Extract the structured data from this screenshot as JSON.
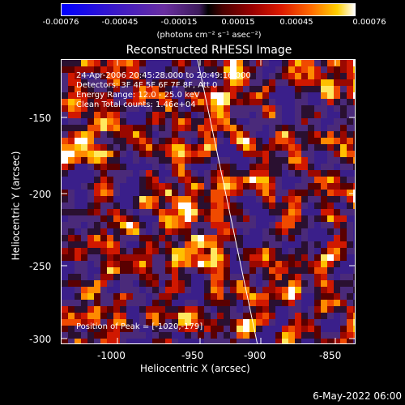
{
  "colorbar": {
    "ticks": [
      "-0.00076",
      "-0.00045",
      "-0.00015",
      "0.00015",
      "0.00045",
      "0.00076"
    ],
    "units": "(photons cm⁻² s⁻¹ asec⁻²)"
  },
  "title": "Reconstructed RHESSI Image",
  "info": {
    "time_range": "24-Apr-2006 20:45:28.000 to 20:49:16.000",
    "detectors": "Detectors: 3F 4F 5F 6F 7F 8F, Att 0",
    "energy_range": "Energy Range: 12.0 - 25.0 keV",
    "clean": "Clean    Total counts: 1.46e+04",
    "peak": "Position of Peak = [-1020,-179]"
  },
  "axes": {
    "x_label": "Heliocentric X (arcsec)",
    "y_label": "Heliocentric Y (arcsec)",
    "x_ticks": [
      "-1000",
      "-950",
      "-900",
      "-850"
    ],
    "y_ticks": [
      "-150",
      "-200",
      "-250",
      "-300"
    ]
  },
  "footer": {
    "date": "6-May-2022 06:00"
  },
  "colors": {
    "background": "#000000",
    "foreground": "#ffffff"
  }
}
